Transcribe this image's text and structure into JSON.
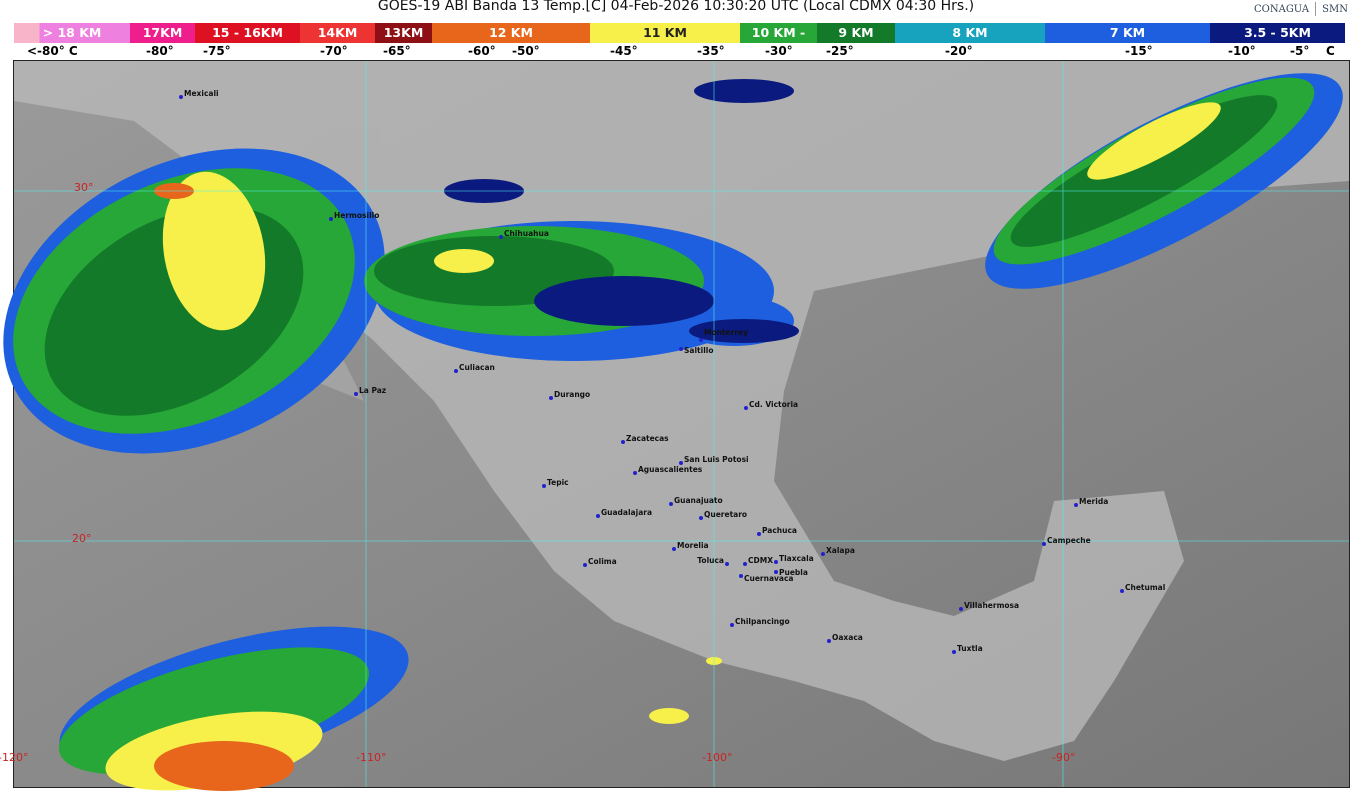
{
  "title": "GOES-19 ABI Banda 13 Temp.[C] 04-Feb-2026 10:30:20 UTC (Local CDMX  04:30 Hrs.)",
  "logos": {
    "conagua": "CONAGUA",
    "smn": "SMN"
  },
  "legend": [
    {
      "label": "> 18 KM",
      "color": "#f8a0c8"
    },
    {
      "label": "17KM",
      "color": "#ee1e8c"
    },
    {
      "label": "15 - 16KM",
      "color": "#dd1122"
    },
    {
      "label": "14KM",
      "color": "#ee3333"
    },
    {
      "label": "13KM",
      "color": "#8e0f14"
    },
    {
      "label": "12 KM",
      "color": "#e8661c"
    },
    {
      "label": "11 KM",
      "color": "#f7f04a"
    },
    {
      "label": "10 KM -",
      "color": "#27a737"
    },
    {
      "label": "9 KM",
      "color": "#137a2a"
    },
    {
      "label": "8 KM",
      "color": "#17a2be"
    },
    {
      "label": "7 KM",
      "color": "#1d5fde"
    },
    {
      "label": "3.5 - 5KM",
      "color": "#0b1a7e"
    }
  ],
  "temps": [
    "<-80° C",
    "-80°",
    "-75°",
    "-70°",
    "-65°",
    "-60°",
    "-50°",
    "-45°",
    "-35°",
    "-30°",
    "-25°",
    "-20°",
    "-15°",
    "-10°",
    "-5°",
    "C"
  ],
  "grid_labels": {
    "lon": [
      "-120°",
      "-110°",
      "-100°",
      "-90°"
    ],
    "lat": [
      "30°",
      "20°"
    ]
  },
  "cities": [
    "Mexicali",
    "Hermosillo",
    "Chihuahua",
    "Culiacan",
    "La Paz",
    "Durango",
    "Monterrey",
    "Saltillo",
    "Cd. Victoria",
    "Zacatecas",
    "San Luis Potosi",
    "Aguascalientes",
    "Tepic",
    "Guanajuato",
    "Guadalajara",
    "Queretaro",
    "Pachuca",
    "Morelia",
    "Colima",
    "Toluca",
    "CDMX",
    "Tlaxcala",
    "Puebla",
    "Cuernavaca",
    "Xalapa",
    "Chilpancingo",
    "Oaxaca",
    "Villahermosa",
    "Tuxtla",
    "Campeche",
    "Merida",
    "Chetumal"
  ]
}
